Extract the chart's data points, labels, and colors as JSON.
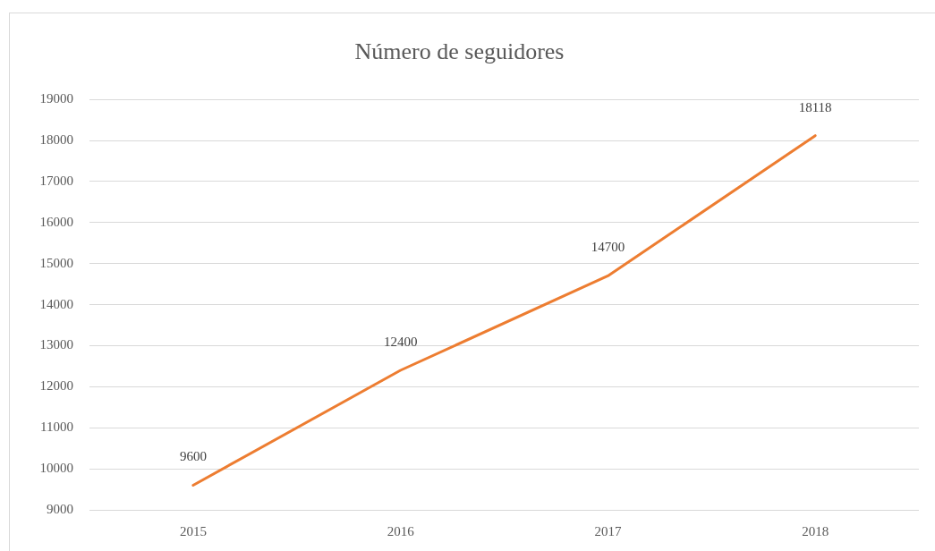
{
  "chart_data": {
    "type": "line",
    "title": "Número de seguidores",
    "categories": [
      "2015",
      "2016",
      "2017",
      "2018"
    ],
    "series": [
      {
        "color": "#ed7d31",
        "values": [
          9600,
          12400,
          14700,
          18118
        ]
      }
    ],
    "ylim": [
      9000,
      19000
    ],
    "yticks": [
      9000,
      10000,
      11000,
      12000,
      13000,
      14000,
      15000,
      16000,
      17000,
      18000,
      19000
    ],
    "grid": "y",
    "data_labels": true,
    "marker": "none"
  }
}
